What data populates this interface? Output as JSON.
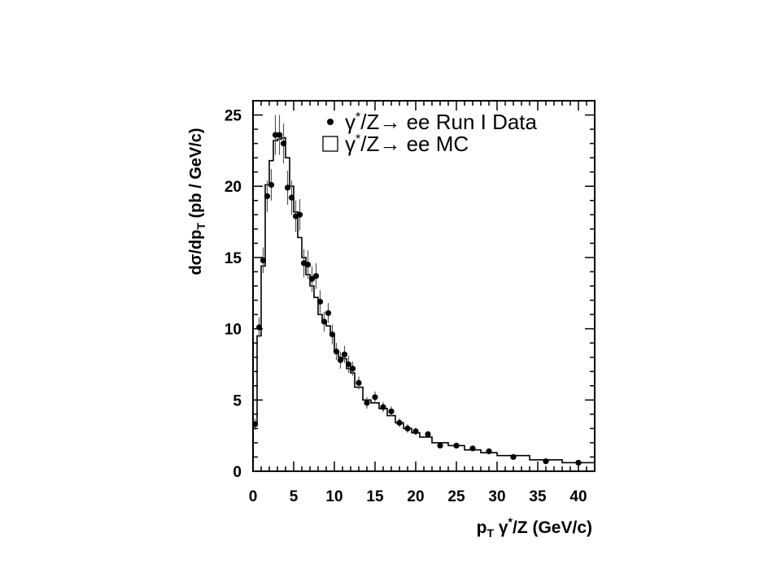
{
  "chart_data": {
    "type": "scatter",
    "xlabel_parts": {
      "p": "p",
      "T": "T",
      "gamma": " γ",
      "star": "*",
      "rest": "/Z (GeV/c)"
    },
    "ylabel_parts": {
      "pre": "dσ/dp",
      "T": "T",
      "post": " (pb / GeV/c)"
    },
    "xlim": [
      0,
      42
    ],
    "ylim": [
      0,
      26
    ],
    "x_ticks": [
      0,
      5,
      10,
      15,
      20,
      25,
      30,
      35,
      40
    ],
    "y_ticks": [
      0,
      5,
      10,
      15,
      20,
      25
    ],
    "legend": {
      "placement": "top-right",
      "data": {
        "gamma": "γ",
        "star": "*",
        "rest": "/Z→ ee Run I Data"
      },
      "mc": {
        "gamma": "γ",
        "star": "*",
        "rest": "/Z→ ee MC"
      }
    },
    "series": [
      {
        "name": "γ*/Z→ ee Run I Data",
        "kind": "points",
        "x": [
          0.25,
          0.75,
          1.25,
          1.75,
          2.25,
          2.75,
          3.25,
          3.75,
          4.25,
          4.75,
          5.25,
          5.75,
          6.25,
          6.75,
          7.25,
          7.75,
          8.25,
          8.75,
          9.25,
          9.75,
          10.25,
          10.75,
          11.25,
          11.75,
          12.25,
          13,
          14,
          15,
          16,
          17,
          18,
          19,
          20,
          21.5,
          23,
          25,
          27,
          29,
          32,
          36,
          40
        ],
        "y": [
          3.3,
          10.1,
          14.8,
          19.3,
          20.1,
          23.6,
          23.6,
          23.0,
          19.9,
          19.2,
          17.9,
          18.0,
          14.6,
          14.5,
          13.5,
          13.7,
          11.9,
          10.5,
          11.1,
          9.6,
          8.4,
          7.8,
          8.2,
          7.5,
          7.2,
          6.2,
          4.8,
          5.2,
          4.5,
          4.2,
          3.4,
          3.0,
          2.8,
          2.6,
          1.8,
          1.8,
          1.6,
          1.4,
          1.0,
          0.7,
          0.6
        ],
        "err": [
          0.4,
          0.7,
          0.9,
          1.1,
          1.1,
          1.4,
          1.4,
          1.4,
          1.2,
          1.2,
          1.1,
          1.1,
          1.0,
          1.0,
          0.9,
          0.9,
          0.8,
          0.7,
          0.7,
          0.7,
          0.6,
          0.6,
          0.6,
          0.6,
          0.5,
          0.45,
          0.4,
          0.4,
          0.35,
          0.35,
          0.3,
          0.3,
          0.25,
          0.2,
          0.15,
          0.15,
          0.12,
          0.1,
          0.08,
          0.06,
          0.05
        ]
      },
      {
        "name": "γ*/Z→ ee MC",
        "kind": "histogram",
        "edges": [
          0,
          0.5,
          1,
          1.5,
          2,
          2.5,
          3,
          3.5,
          4,
          4.5,
          5,
          5.5,
          6,
          6.5,
          7,
          7.5,
          8,
          8.5,
          9,
          9.5,
          10,
          10.5,
          11,
          11.5,
          12,
          12.5,
          13.5,
          14.5,
          15.5,
          16.5,
          17.5,
          18.5,
          19.5,
          20.5,
          22,
          24,
          26,
          28,
          30,
          34,
          38,
          42
        ],
        "values": [
          3.2,
          9.5,
          14.4,
          20.1,
          21.8,
          23.2,
          23.3,
          23.4,
          22.0,
          20.0,
          18.2,
          16.4,
          15.0,
          13.8,
          13.0,
          12.2,
          11.0,
          10.5,
          10.2,
          9.6,
          8.4,
          8.0,
          7.9,
          7.2,
          6.9,
          5.9,
          5.0,
          4.8,
          4.4,
          3.9,
          3.4,
          3.0,
          2.7,
          2.4,
          2.0,
          1.8,
          1.5,
          1.3,
          1.1,
          0.8,
          0.6
        ]
      }
    ]
  }
}
